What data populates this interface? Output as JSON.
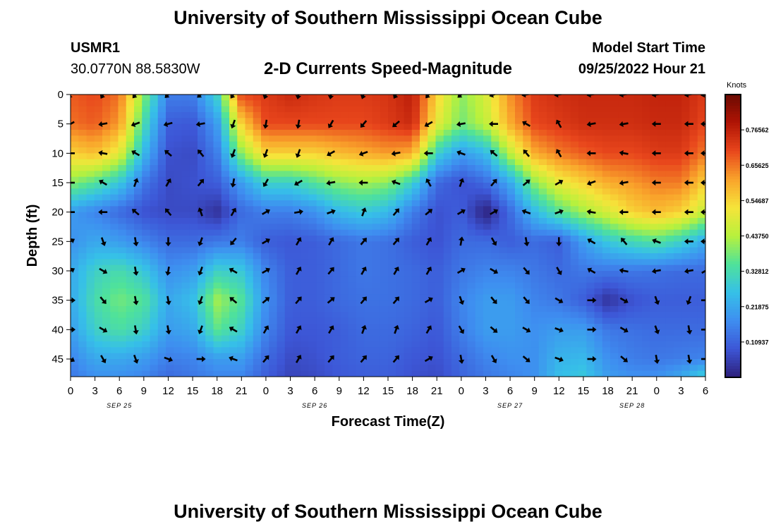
{
  "page": {
    "title_top": "University of Southern Mississippi Ocean Cube",
    "title_bottom": "University of Southern Mississippi Ocean Cube"
  },
  "station": {
    "id": "USMR1",
    "coords": "30.0770N  88.5830W"
  },
  "model": {
    "label": "Model Start Time",
    "time": "09/25/2022 Hour 21"
  },
  "chart_data": {
    "type": "heatmap",
    "title": "2-D Currents Speed-Magnitude",
    "xlabel": "Forecast Time(Z)",
    "ylabel": "Depth (ft)",
    "x_ticks": [
      "0",
      "3",
      "6",
      "9",
      "12",
      "15",
      "18",
      "21",
      "0",
      "3",
      "6",
      "9",
      "12",
      "15",
      "18",
      "21",
      "0",
      "3",
      "6",
      "9",
      "12",
      "15",
      "18",
      "21",
      "0",
      "3",
      "6"
    ],
    "date_labels": [
      "SEP 25",
      "SEP 26",
      "SEP 27",
      "SEP 28"
    ],
    "date_label_hours": [
      6,
      30,
      54,
      69
    ],
    "y_ticks": [
      0,
      5,
      10,
      15,
      20,
      25,
      30,
      35,
      40,
      45
    ],
    "xlim_hours": [
      0,
      78
    ],
    "ylim_ft": [
      0,
      48
    ],
    "colorbar": {
      "unit": "Knots",
      "ticks": [
        "0.76562",
        "0.65625",
        "0.54687",
        "0.43750",
        "0.32812",
        "0.21875",
        "0.10937"
      ],
      "tick_values": [
        0.765625,
        0.65625,
        0.546875,
        0.4375,
        0.328125,
        0.21875,
        0.109375
      ],
      "range": [
        0,
        0.875
      ],
      "colors": [
        "#2d1f7a",
        "#3d56d6",
        "#3e8ef0",
        "#36c0e8",
        "#4fe29a",
        "#b8f13c",
        "#f6e43a",
        "#f9a32b",
        "#e8461c",
        "#b01405",
        "#6a0a02"
      ]
    },
    "speed_grid": {
      "hours": [
        0,
        3,
        6,
        9,
        12,
        15,
        18,
        21,
        24,
        27,
        30,
        33,
        36,
        39,
        42,
        45,
        48,
        51,
        54,
        57,
        60,
        63,
        66,
        69,
        72,
        75,
        78
      ],
      "depths_ft": [
        0,
        5,
        10,
        15,
        20,
        25,
        30,
        35,
        40,
        45,
        48
      ],
      "values": [
        [
          0.68,
          0.7,
          0.66,
          0.4,
          0.15,
          0.15,
          0.3,
          0.7,
          0.72,
          0.75,
          0.73,
          0.72,
          0.72,
          0.73,
          0.77,
          0.55,
          0.4,
          0.48,
          0.63,
          0.72,
          0.74,
          0.75,
          0.75,
          0.75,
          0.76,
          0.76,
          0.72
        ],
        [
          0.66,
          0.68,
          0.62,
          0.33,
          0.1,
          0.09,
          0.2,
          0.55,
          0.7,
          0.7,
          0.7,
          0.7,
          0.7,
          0.72,
          0.75,
          0.5,
          0.38,
          0.45,
          0.6,
          0.7,
          0.72,
          0.74,
          0.74,
          0.74,
          0.75,
          0.75,
          0.7
        ],
        [
          0.55,
          0.58,
          0.5,
          0.25,
          0.08,
          0.07,
          0.15,
          0.4,
          0.55,
          0.55,
          0.55,
          0.58,
          0.6,
          0.62,
          0.6,
          0.3,
          0.2,
          0.25,
          0.45,
          0.6,
          0.65,
          0.68,
          0.7,
          0.7,
          0.72,
          0.72,
          0.65
        ],
        [
          0.4,
          0.35,
          0.28,
          0.14,
          0.07,
          0.08,
          0.1,
          0.2,
          0.3,
          0.3,
          0.35,
          0.4,
          0.42,
          0.4,
          0.3,
          0.12,
          0.08,
          0.12,
          0.22,
          0.4,
          0.5,
          0.55,
          0.6,
          0.62,
          0.65,
          0.65,
          0.55
        ],
        [
          0.2,
          0.16,
          0.12,
          0.08,
          0.07,
          0.07,
          0.03,
          0.12,
          0.15,
          0.15,
          0.18,
          0.25,
          0.28,
          0.25,
          0.15,
          0.08,
          0.1,
          0.0,
          0.12,
          0.25,
          0.35,
          0.42,
          0.48,
          0.55,
          0.58,
          0.55,
          0.45
        ],
        [
          0.18,
          0.22,
          0.2,
          0.16,
          0.12,
          0.12,
          0.14,
          0.15,
          0.1,
          0.09,
          0.1,
          0.12,
          0.14,
          0.13,
          0.1,
          0.08,
          0.12,
          0.12,
          0.1,
          0.12,
          0.1,
          0.2,
          0.28,
          0.32,
          0.35,
          0.3,
          0.22
        ],
        [
          0.22,
          0.3,
          0.33,
          0.28,
          0.18,
          0.2,
          0.3,
          0.28,
          0.16,
          0.1,
          0.1,
          0.12,
          0.14,
          0.13,
          0.12,
          0.1,
          0.14,
          0.16,
          0.16,
          0.14,
          0.12,
          0.14,
          0.14,
          0.14,
          0.13,
          0.12,
          0.12
        ],
        [
          0.22,
          0.33,
          0.38,
          0.35,
          0.22,
          0.26,
          0.42,
          0.35,
          0.18,
          0.1,
          0.1,
          0.12,
          0.13,
          0.13,
          0.12,
          0.1,
          0.16,
          0.2,
          0.2,
          0.16,
          0.14,
          0.1,
          0.03,
          0.08,
          0.1,
          0.1,
          0.1
        ],
        [
          0.2,
          0.3,
          0.34,
          0.3,
          0.2,
          0.22,
          0.36,
          0.3,
          0.16,
          0.09,
          0.09,
          0.1,
          0.12,
          0.12,
          0.11,
          0.09,
          0.15,
          0.2,
          0.2,
          0.18,
          0.2,
          0.2,
          0.14,
          0.13,
          0.12,
          0.12,
          0.12
        ],
        [
          0.16,
          0.22,
          0.22,
          0.2,
          0.15,
          0.16,
          0.2,
          0.2,
          0.12,
          0.07,
          0.08,
          0.1,
          0.11,
          0.11,
          0.09,
          0.08,
          0.12,
          0.16,
          0.18,
          0.18,
          0.24,
          0.25,
          0.18,
          0.15,
          0.14,
          0.15,
          0.16
        ],
        [
          0.14,
          0.18,
          0.18,
          0.16,
          0.12,
          0.14,
          0.16,
          0.16,
          0.1,
          0.06,
          0.07,
          0.09,
          0.1,
          0.1,
          0.08,
          0.07,
          0.11,
          0.14,
          0.16,
          0.18,
          0.26,
          0.28,
          0.2,
          0.18,
          0.18,
          0.22,
          0.3
        ]
      ]
    },
    "arrows_note": "direction in degrees (0=up/north, clockwise), unit arrows",
    "arrows": {
      "hours": [
        0,
        4,
        8,
        12,
        16,
        20,
        24,
        28,
        32,
        36,
        40,
        44,
        48,
        52,
        56,
        60,
        64,
        68,
        72,
        76,
        78
      ],
      "depths_ft": [
        0,
        5,
        10,
        15,
        20,
        25,
        30,
        35,
        40,
        45
      ],
      "directions": [
        [
          210,
          210,
          220,
          225,
          230,
          215,
          200,
          190,
          190,
          200,
          210,
          220,
          230,
          250,
          260,
          260,
          260,
          260,
          260,
          260,
          260
        ],
        [
          240,
          260,
          250,
          255,
          260,
          200,
          190,
          190,
          210,
          220,
          230,
          240,
          260,
          270,
          300,
          330,
          260,
          260,
          270,
          270,
          270
        ],
        [
          270,
          280,
          300,
          310,
          320,
          200,
          200,
          200,
          240,
          250,
          260,
          270,
          290,
          310,
          320,
          330,
          270,
          280,
          270,
          270,
          270
        ],
        [
          270,
          300,
          20,
          30,
          40,
          190,
          210,
          240,
          260,
          270,
          290,
          330,
          20,
          40,
          50,
          60,
          250,
          260,
          270,
          270,
          270
        ],
        [
          270,
          270,
          310,
          320,
          340,
          30,
          60,
          80,
          70,
          20,
          40,
          50,
          60,
          60,
          290,
          70,
          280,
          270,
          270,
          270,
          270
        ],
        [
          60,
          160,
          170,
          180,
          200,
          220,
          60,
          30,
          30,
          40,
          40,
          30,
          10,
          150,
          170,
          180,
          300,
          320,
          290,
          270,
          270
        ],
        [
          60,
          120,
          170,
          190,
          200,
          300,
          60,
          30,
          40,
          30,
          30,
          30,
          60,
          120,
          140,
          150,
          300,
          280,
          260,
          260,
          60
        ],
        [
          90,
          140,
          170,
          170,
          200,
          310,
          50,
          40,
          50,
          40,
          40,
          60,
          160,
          140,
          140,
          120,
          90,
          120,
          160,
          200,
          90
        ],
        [
          90,
          120,
          170,
          170,
          200,
          300,
          30,
          30,
          30,
          20,
          20,
          30,
          150,
          130,
          120,
          110,
          90,
          120,
          160,
          170,
          90
        ],
        [
          120,
          150,
          160,
          110,
          90,
          290,
          40,
          30,
          40,
          40,
          40,
          60,
          170,
          150,
          130,
          110,
          90,
          130,
          170,
          170,
          90
        ]
      ]
    }
  }
}
